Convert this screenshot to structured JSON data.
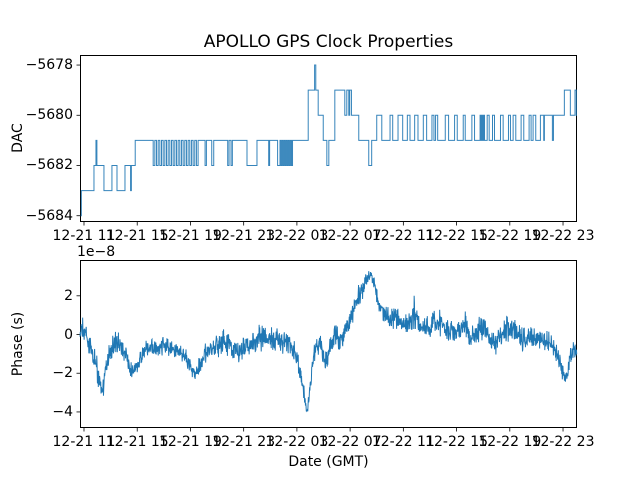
{
  "title": "APOLLO GPS Clock Properties",
  "colors": {
    "line": "#1f77b4",
    "frame": "#000000",
    "text": "#000000",
    "background": "#ffffff"
  },
  "chart_data": [
    {
      "name": "dac",
      "type": "line",
      "drawstyle": "steps",
      "ylabel": "DAC",
      "x_unit": "hours since 12-21 00:00 GMT",
      "xlim": [
        10.7,
        48.05
      ],
      "ylim": [
        -5684.25,
        -5677.6
      ],
      "ytick_values": [
        -5678,
        -5680,
        -5682,
        -5684
      ],
      "ytick_labels": [
        "−5678",
        "−5680",
        "−5682",
        "−5684"
      ],
      "xtick_values": [
        11,
        15,
        19,
        23,
        27,
        31,
        35,
        39,
        43,
        47
      ],
      "xtick_labels": [
        "12-21 11",
        "12-21 15",
        "12-21 19",
        "12-21 23",
        "12-22 03",
        "12-22 07",
        "12-22 11",
        "12-22 15",
        "12-22 19",
        "12-22 23"
      ],
      "segments": [
        [
          10.75,
          10.8,
          -5684
        ],
        [
          10.8,
          11.75,
          -5683
        ],
        [
          11.75,
          11.9,
          -5682
        ],
        [
          11.9,
          11.97,
          -5681
        ],
        [
          11.97,
          12.5,
          -5682
        ],
        [
          12.5,
          13.1,
          -5683
        ],
        [
          13.1,
          13.48,
          -5682
        ],
        [
          13.48,
          14.08,
          -5683
        ],
        [
          14.08,
          14.5,
          -5682
        ],
        [
          14.5,
          14.56,
          -5683
        ],
        [
          14.56,
          14.85,
          -5682
        ],
        [
          14.85,
          16.2,
          -5681
        ],
        [
          19.7,
          20.1,
          -5681
        ],
        [
          20.1,
          20.2,
          -5682
        ],
        [
          20.2,
          20.6,
          -5681
        ],
        [
          20.6,
          20.75,
          -5682
        ],
        [
          20.75,
          21.8,
          -5681
        ],
        [
          21.8,
          21.9,
          -5682
        ],
        [
          21.9,
          22.05,
          -5681
        ],
        [
          22.05,
          22.15,
          -5682
        ],
        [
          22.15,
          23.25,
          -5681
        ],
        [
          23.25,
          24.0,
          -5682
        ],
        [
          24.0,
          24.88,
          -5681
        ],
        [
          24.88,
          24.95,
          -5682
        ],
        [
          24.95,
          25.55,
          -5681
        ],
        [
          25.55,
          25.65,
          -5682
        ],
        [
          26.75,
          27.85,
          -5681
        ],
        [
          27.85,
          28.33,
          -5679
        ],
        [
          28.33,
          28.42,
          -5678
        ],
        [
          28.42,
          28.6,
          -5679
        ],
        [
          28.6,
          28.98,
          -5680
        ],
        [
          28.98,
          29.25,
          -5681
        ],
        [
          29.25,
          29.4,
          -5682
        ],
        [
          29.4,
          29.85,
          -5681
        ],
        [
          29.85,
          30.6,
          -5679
        ],
        [
          30.6,
          30.75,
          -5680
        ],
        [
          30.75,
          30.9,
          -5679
        ],
        [
          30.9,
          30.97,
          -5680
        ],
        [
          30.97,
          31.1,
          -5679
        ],
        [
          31.1,
          31.65,
          -5680
        ],
        [
          31.65,
          32.4,
          -5681
        ],
        [
          32.4,
          32.62,
          -5682
        ],
        [
          32.62,
          33.0,
          -5681
        ],
        [
          33.0,
          33.38,
          -5680
        ],
        [
          33.38,
          34.0,
          -5681
        ],
        [
          34.0,
          34.2,
          -5680
        ],
        [
          34.2,
          34.6,
          -5681
        ],
        [
          34.6,
          34.95,
          -5680
        ],
        [
          34.95,
          35.3,
          -5681
        ],
        [
          35.3,
          35.5,
          -5680
        ],
        [
          35.5,
          35.85,
          -5681
        ],
        [
          35.85,
          36.1,
          -5680
        ],
        [
          36.1,
          36.5,
          -5681
        ],
        [
          36.5,
          36.75,
          -5680
        ],
        [
          36.75,
          37.15,
          -5681
        ],
        [
          37.15,
          37.3,
          -5680
        ],
        [
          37.3,
          37.42,
          -5681
        ],
        [
          37.42,
          37.58,
          -5680
        ],
        [
          37.58,
          38.15,
          -5681
        ],
        [
          38.15,
          38.4,
          -5680
        ],
        [
          38.4,
          38.85,
          -5681
        ],
        [
          38.85,
          39.05,
          -5680
        ],
        [
          39.05,
          39.5,
          -5681
        ],
        [
          39.5,
          39.65,
          -5680
        ],
        [
          39.65,
          40.15,
          -5681
        ],
        [
          40.15,
          40.35,
          -5680
        ],
        [
          40.35,
          40.7,
          -5681
        ],
        [
          41.1,
          41.3,
          -5681
        ],
        [
          41.3,
          41.45,
          -5680
        ],
        [
          41.45,
          41.7,
          -5681
        ],
        [
          41.7,
          41.85,
          -5680
        ],
        [
          41.85,
          42.3,
          -5681
        ],
        [
          42.3,
          42.5,
          -5680
        ],
        [
          42.5,
          42.9,
          -5681
        ],
        [
          42.9,
          43.05,
          -5680
        ],
        [
          43.05,
          43.25,
          -5681
        ],
        [
          43.25,
          43.45,
          -5680
        ],
        [
          43.45,
          43.85,
          -5681
        ],
        [
          43.85,
          44.05,
          -5680
        ],
        [
          44.05,
          44.45,
          -5681
        ],
        [
          44.45,
          44.6,
          -5680
        ],
        [
          44.6,
          44.75,
          -5681
        ],
        [
          44.75,
          44.95,
          -5680
        ],
        [
          44.95,
          45.3,
          -5681
        ],
        [
          45.3,
          45.55,
          -5680
        ],
        [
          45.55,
          45.6,
          -5681
        ],
        [
          45.6,
          46.2,
          -5680
        ],
        [
          46.2,
          46.28,
          -5681
        ],
        [
          46.28,
          47.1,
          -5680
        ],
        [
          47.1,
          47.55,
          -5679
        ],
        [
          47.55,
          47.9,
          -5680
        ],
        [
          47.9,
          48.0,
          -5679
        ],
        [
          48.0,
          48.05,
          -5680
        ]
      ],
      "bursts": [
        [
          16.2,
          19.7,
          -5682,
          -5681,
          14
        ],
        [
          25.65,
          26.75,
          -5682,
          -5681,
          7
        ],
        [
          40.7,
          41.1,
          -5681,
          -5680,
          3
        ]
      ]
    },
    {
      "name": "phase",
      "type": "line",
      "ylabel": "Phase (s)",
      "xlabel": "Date (GMT)",
      "offset_text": "1e−8",
      "y_scale": 1e-08,
      "x_unit": "hours since 12-21 00:00 GMT",
      "xlim": [
        10.7,
        48.05
      ],
      "ylim": [
        -4.83,
        3.85
      ],
      "ytick_values": [
        2,
        0,
        -2,
        -4
      ],
      "ytick_labels": [
        "2",
        "0",
        "−2",
        "−4"
      ],
      "xtick_values": [
        11,
        15,
        19,
        23,
        27,
        31,
        35,
        39,
        43,
        47
      ],
      "xtick_labels": [
        "12-21 11",
        "12-21 15",
        "12-21 19",
        "12-21 23",
        "12-22 03",
        "12-22 07",
        "12-22 11",
        "12-22 15",
        "12-22 19",
        "12-22 23"
      ],
      "envelope": [
        [
          10.7,
          0.4,
          0.5
        ],
        [
          11.1,
          0.1,
          0.6
        ],
        [
          11.5,
          -0.6,
          0.5
        ],
        [
          11.8,
          -1.3,
          0.5
        ],
        [
          12.1,
          -2.2,
          0.6
        ],
        [
          12.35,
          -3.0,
          0.4
        ],
        [
          12.6,
          -2.0,
          0.5
        ],
        [
          12.95,
          -0.9,
          0.5
        ],
        [
          13.3,
          -0.4,
          0.5
        ],
        [
          13.7,
          -0.45,
          0.6
        ],
        [
          14.1,
          -1.0,
          0.5
        ],
        [
          14.45,
          -1.9,
          0.35
        ],
        [
          14.8,
          -1.8,
          0.35
        ],
        [
          15.2,
          -1.2,
          0.4
        ],
        [
          15.6,
          -0.8,
          0.4
        ],
        [
          16.0,
          -0.7,
          0.4
        ],
        [
          16.4,
          -0.6,
          0.45
        ],
        [
          16.8,
          -0.7,
          0.4
        ],
        [
          17.1,
          -0.6,
          0.4
        ],
        [
          17.5,
          -0.7,
          0.45
        ],
        [
          17.9,
          -0.8,
          0.4
        ],
        [
          18.2,
          -0.9,
          0.4
        ],
        [
          18.6,
          -1.1,
          0.4
        ],
        [
          19.0,
          -1.6,
          0.4
        ],
        [
          19.35,
          -2.2,
          0.3
        ],
        [
          19.7,
          -1.6,
          0.4
        ],
        [
          20.1,
          -1.0,
          0.4
        ],
        [
          20.5,
          -0.8,
          0.45
        ],
        [
          20.9,
          -0.6,
          0.45
        ],
        [
          21.2,
          -0.5,
          0.5
        ],
        [
          21.6,
          -0.3,
          0.6
        ],
        [
          22.0,
          -0.6,
          0.5
        ],
        [
          22.35,
          -0.7,
          0.5
        ],
        [
          22.7,
          -0.9,
          0.5
        ],
        [
          23.1,
          -0.6,
          0.45
        ],
        [
          23.5,
          -0.4,
          0.45
        ],
        [
          23.85,
          -0.3,
          0.5
        ],
        [
          24.25,
          -0.1,
          0.6
        ],
        [
          24.6,
          -0.2,
          0.5
        ],
        [
          25.0,
          -0.3,
          0.5
        ],
        [
          25.35,
          -0.2,
          0.5
        ],
        [
          25.75,
          -0.3,
          0.5
        ],
        [
          26.1,
          -0.4,
          0.5
        ],
        [
          26.5,
          -0.5,
          0.45
        ],
        [
          26.85,
          -0.9,
          0.4
        ],
        [
          27.1,
          -1.4,
          0.4
        ],
        [
          27.35,
          -2.3,
          0.4
        ],
        [
          27.6,
          -3.3,
          0.45
        ],
        [
          27.75,
          -3.9,
          0.3
        ],
        [
          28.0,
          -2.7,
          0.4
        ],
        [
          28.2,
          -1.4,
          0.4
        ],
        [
          28.4,
          -0.7,
          0.4
        ],
        [
          28.75,
          -0.4,
          0.45
        ],
        [
          29.1,
          -1.5,
          0.4
        ],
        [
          29.3,
          -1.2,
          0.4
        ],
        [
          29.5,
          -0.6,
          0.4
        ],
        [
          29.85,
          -0.1,
          0.5
        ],
        [
          30.2,
          -0.4,
          0.5
        ],
        [
          30.6,
          0.1,
          0.5
        ],
        [
          31.0,
          0.8,
          0.5
        ],
        [
          31.4,
          1.6,
          0.5
        ],
        [
          31.75,
          2.1,
          0.5
        ],
        [
          32.1,
          2.5,
          0.45
        ],
        [
          32.4,
          2.9,
          0.4
        ],
        [
          32.55,
          3.2,
          0.15
        ],
        [
          32.9,
          2.3,
          0.4
        ],
        [
          33.25,
          1.5,
          0.5
        ],
        [
          33.6,
          1.0,
          0.45
        ],
        [
          34.0,
          0.8,
          0.4
        ],
        [
          34.4,
          0.9,
          0.45
        ],
        [
          34.75,
          0.7,
          0.4
        ],
        [
          35.1,
          0.6,
          0.4
        ],
        [
          35.5,
          0.7,
          0.45
        ],
        [
          35.9,
          1.1,
          0.9
        ],
        [
          36.25,
          0.5,
          0.4
        ],
        [
          36.6,
          0.4,
          0.4
        ],
        [
          37.0,
          0.4,
          0.45
        ],
        [
          37.5,
          0.8,
          0.7
        ],
        [
          38.1,
          0.3,
          0.45
        ],
        [
          38.5,
          0.1,
          0.5
        ],
        [
          38.9,
          0.2,
          0.45
        ],
        [
          39.25,
          0.1,
          0.5
        ],
        [
          39.7,
          0.6,
          0.6
        ],
        [
          40.0,
          -0.2,
          0.5
        ],
        [
          40.4,
          0.0,
          0.5
        ],
        [
          41.0,
          0.6,
          0.65
        ],
        [
          41.5,
          -0.3,
          0.5
        ],
        [
          42.0,
          -0.4,
          0.5
        ],
        [
          42.65,
          0.4,
          0.6
        ],
        [
          43.2,
          0.3,
          0.6
        ],
        [
          43.75,
          -0.2,
          0.5
        ],
        [
          44.4,
          -0.1,
          0.5
        ],
        [
          44.9,
          -0.3,
          0.5
        ],
        [
          45.4,
          -0.3,
          0.5
        ],
        [
          46.0,
          -0.5,
          0.5
        ],
        [
          46.6,
          -1.0,
          0.45
        ],
        [
          46.9,
          -1.7,
          0.4
        ],
        [
          47.2,
          -2.4,
          0.3
        ],
        [
          47.5,
          -1.4,
          0.4
        ],
        [
          47.75,
          -0.8,
          0.4
        ],
        [
          48.05,
          -0.9,
          0.3
        ]
      ],
      "noise": {
        "seed": 20211221,
        "points_per_hour": 44,
        "spread": 1.4
      }
    }
  ]
}
